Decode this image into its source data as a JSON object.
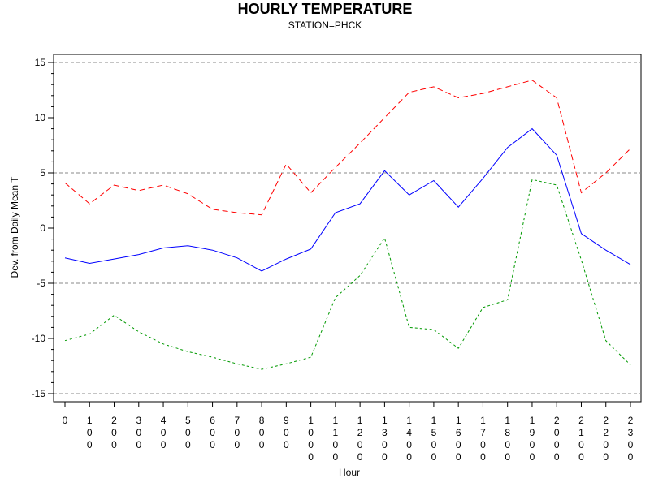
{
  "chart_data": {
    "type": "line",
    "title": "HOURLY TEMPERATURE",
    "subtitle": "STATION=PHCK",
    "xlabel": "Hour",
    "ylabel": "Dev. from Daily Mean T",
    "x": [
      0,
      100,
      200,
      300,
      400,
      500,
      600,
      700,
      800,
      900,
      1000,
      1100,
      1200,
      1300,
      1400,
      1500,
      1600,
      1700,
      1800,
      1900,
      2000,
      2100,
      2200,
      2300
    ],
    "x_tick_labels": [
      "0",
      "100",
      "200",
      "300",
      "400",
      "500",
      "600",
      "700",
      "800",
      "900",
      "1000",
      "1100",
      "1200",
      "1300",
      "1400",
      "1500",
      "1600",
      "1700",
      "1800",
      "1900",
      "2000",
      "2100",
      "2200",
      "2300"
    ],
    "ylim": [
      -15,
      15
    ],
    "y_ticks": [
      -15,
      -10,
      -5,
      0,
      5,
      10,
      15
    ],
    "y_tick_labels": [
      "-15",
      "-10",
      "-5",
      "0",
      "5",
      "10",
      "15"
    ],
    "reference_lines": [
      -15,
      -5,
      5,
      15
    ],
    "grid": false,
    "series": [
      {
        "values": [
          4.1,
          2.2,
          3.9,
          3.4,
          3.9,
          3.1,
          1.7,
          1.4,
          1.2,
          5.8,
          3.2,
          5.5,
          7.7,
          10.0,
          12.3,
          12.8,
          11.8,
          12.2,
          12.8,
          13.4,
          11.8,
          3.2,
          5.0,
          7.2
        ],
        "color": "#ff0000",
        "dash": "dashed"
      },
      {
        "values": [
          -2.7,
          -3.2,
          -2.8,
          -2.4,
          -1.8,
          -1.6,
          -2.0,
          -2.7,
          -3.9,
          -2.8,
          -1.9,
          1.4,
          2.2,
          5.2,
          3.0,
          4.3,
          1.9,
          4.5,
          7.3,
          9.0,
          6.6,
          -0.5,
          -2.0,
          -3.3
        ],
        "color": "#0000ff",
        "dash": "solid"
      },
      {
        "values": [
          -10.2,
          -9.6,
          -7.9,
          -9.4,
          -10.5,
          -11.2,
          -11.7,
          -12.3,
          -12.8,
          -12.3,
          -11.7,
          -6.3,
          -4.3,
          -0.9,
          -9.0,
          -9.2,
          -10.9,
          -7.2,
          -6.5,
          4.4,
          3.9,
          -2.9,
          -10.2,
          -12.4
        ],
        "color": "#009900",
        "dash": "dotted"
      }
    ]
  }
}
